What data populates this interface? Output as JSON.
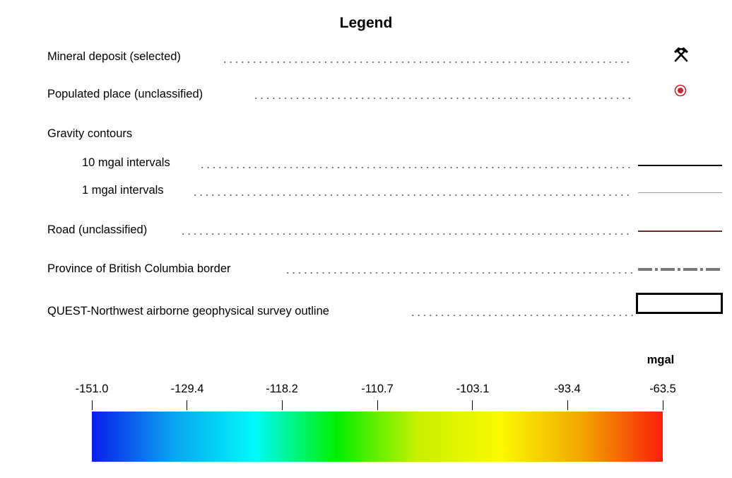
{
  "legend": {
    "title": "Legend",
    "items": {
      "mineral_deposit": {
        "label": "Mineral deposit (selected)",
        "icon": "crossed-hammers-icon",
        "color": "#000000"
      },
      "populated_place": {
        "label": "Populated place (unclassified)",
        "icon": "populated-place-icon",
        "color": "#c1272d"
      },
      "gravity_contours": {
        "label": "Gravity contours"
      },
      "contour_10": {
        "label": "10 mgal intervals",
        "color": "#000000"
      },
      "contour_1": {
        "label": "1 mgal intervals",
        "color": "#999999"
      },
      "road": {
        "label": "Road (unclassified)",
        "color": "#6b2d1e"
      },
      "bc_border": {
        "label": "Province of British Columbia border",
        "color": "#777777",
        "style": "dash-dot"
      },
      "survey_outline": {
        "label": "QUEST-Northwest airborne geophysical survey outline",
        "color": "#000000"
      }
    }
  },
  "colorbar": {
    "unit": "mgal",
    "ticks": [
      "-151.0",
      "-129.4",
      "-118.2",
      "-110.7",
      "-103.1",
      "-93.4",
      "-63.5"
    ],
    "colors": [
      "#0a1eea",
      "#0aa4f0",
      "#00fafa",
      "#00f000",
      "#c8f000",
      "#fafa00",
      "#f2a800",
      "#fa1e0a"
    ]
  }
}
